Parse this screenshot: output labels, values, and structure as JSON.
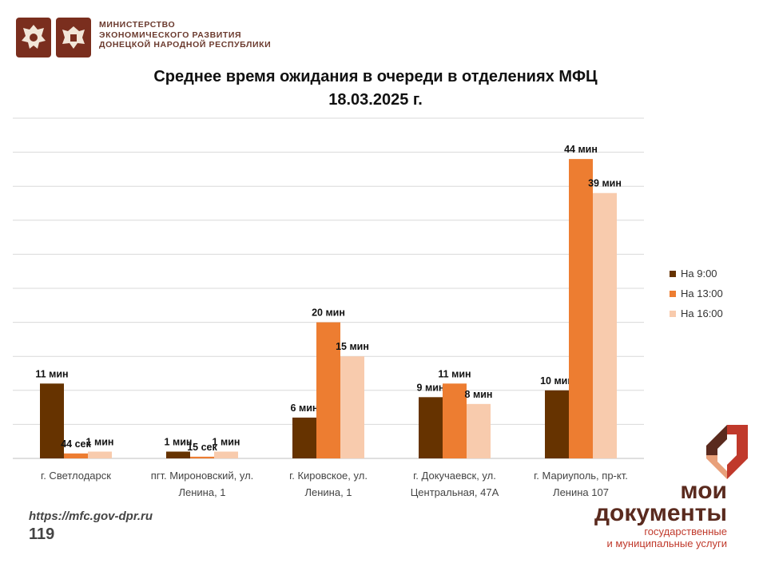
{
  "header": {
    "ministry_lines": [
      "МИНИСТЕРСТВО",
      "ЭКОНОМИЧЕСКОГО РАЗВИТИЯ",
      "ДОНЕЦКОЙ НАРОДНОЙ РЕСПУБЛИКИ"
    ],
    "emblems": [
      "coat-of-arms-russia-icon",
      "coat-of-arms-dpr-icon"
    ]
  },
  "chart_data": {
    "type": "bar",
    "title": "Среднее время ожидания в очереди в отделениях МФЦ",
    "subtitle": "18.03.2025 г.",
    "categories": [
      [
        "г. Светлодарск"
      ],
      [
        "пгт. Мироновский, ул.",
        "Ленина, 1"
      ],
      [
        "г. Кировское, ул.",
        "Ленина, 1"
      ],
      [
        "г. Докучаевск, ул.",
        "Центральная, 47А"
      ],
      [
        "г. Мариуполь, пр-кт.",
        "Ленина 107"
      ]
    ],
    "series": [
      {
        "name": "На 9:00",
        "color": "#663300",
        "values": [
          11,
          1,
          6,
          9,
          10
        ],
        "labels": [
          "11 мин",
          "1 мин",
          "6 мин",
          "9 мин",
          "10 мин"
        ]
      },
      {
        "name": "На 13:00",
        "color": "#ed7d31",
        "values": [
          0.73,
          0.25,
          20,
          11,
          44
        ],
        "labels": [
          "44 сек",
          "15 сек",
          "20 мин",
          "11 мин",
          "44 мин"
        ]
      },
      {
        "name": "На 16:00",
        "color": "#f8cbad",
        "values": [
          1,
          1,
          15,
          8,
          39
        ],
        "labels": [
          "1 мин",
          "1 мин",
          "15 мин",
          "8 мин",
          "39 мин"
        ]
      }
    ],
    "ylim": [
      0,
      50
    ],
    "grid_step": 5,
    "grid": true,
    "legend": "right"
  },
  "footer": {
    "url": "https://mfc.gov-dpr.ru",
    "page_number": "119"
  },
  "brand": {
    "line1": "мои",
    "line2": "документы",
    "line3": "государственные",
    "line4": "и муниципальные услуги",
    "colors": {
      "dark": "#5a2a1e",
      "accent": "#c0392b",
      "light": "#e8a07a"
    }
  }
}
